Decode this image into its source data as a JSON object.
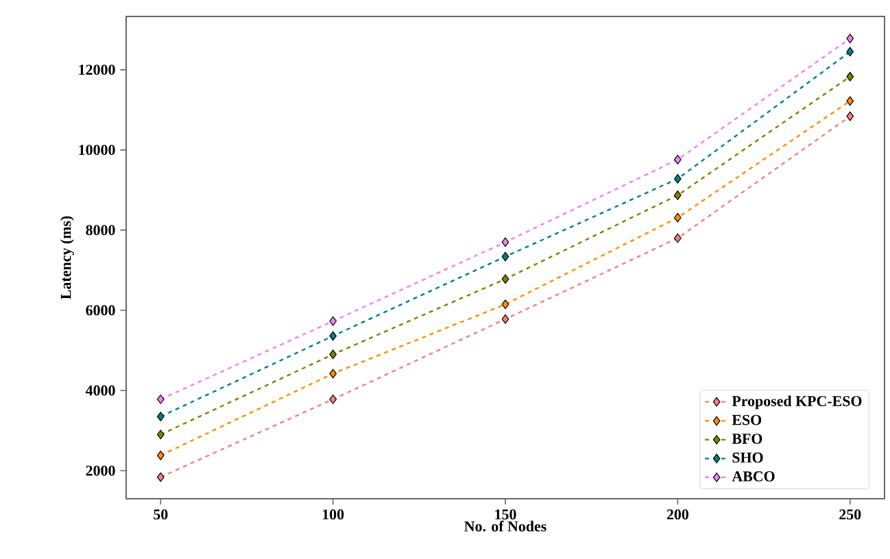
{
  "chart_data": {
    "type": "line",
    "xlabel": "No. of Nodes",
    "ylabel": "Latency (ms)",
    "x": [
      50,
      100,
      150,
      200,
      250
    ],
    "xlim": [
      40,
      260
    ],
    "xticks": [
      50,
      100,
      150,
      200,
      250
    ],
    "ylim": [
      1300,
      13330
    ],
    "yticks": [
      2000,
      4000,
      6000,
      8000,
      10000,
      12000
    ],
    "marker": "diamond",
    "line_style": "dashed",
    "legend": "bottom right",
    "grid": false,
    "series": [
      {
        "name": "Proposed KPC-ESO",
        "color": "#f08080",
        "values": [
          1840,
          3780,
          5780,
          7800,
          10840
        ]
      },
      {
        "name": "ESO",
        "color": "#ff8c00",
        "values": [
          2380,
          4420,
          6150,
          8310,
          11220
        ]
      },
      {
        "name": "BFO",
        "color": "#808000",
        "values": [
          2900,
          4900,
          6780,
          8870,
          11830
        ]
      },
      {
        "name": "SHO",
        "color": "#008080",
        "values": [
          3350,
          5360,
          7340,
          9280,
          12450
        ]
      },
      {
        "name": "ABCO",
        "color": "#ee82ee",
        "values": [
          3780,
          5730,
          7700,
          9760,
          12780
        ]
      }
    ]
  }
}
